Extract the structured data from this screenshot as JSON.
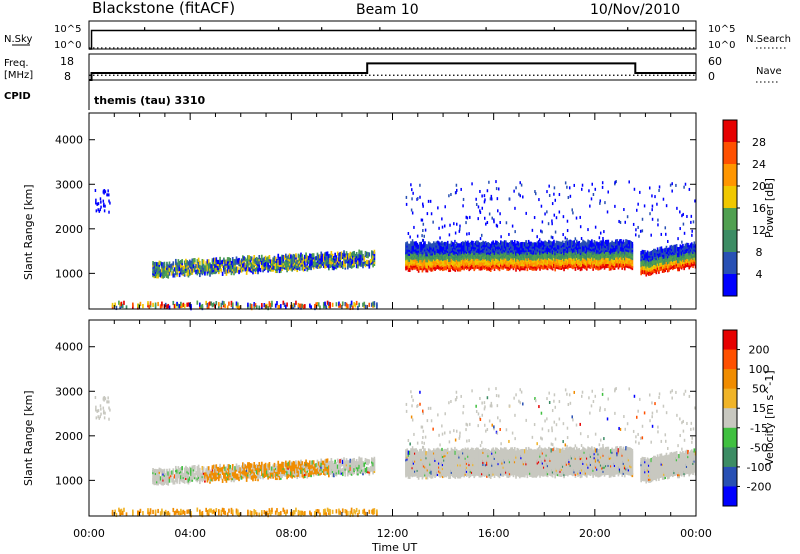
{
  "header": {
    "station": "Blackstone (fitACF)",
    "beam": "Beam 10",
    "date": "10/Nov/2010"
  },
  "labels": {
    "nsky": "N.Sky",
    "nsearch": "N.Search",
    "freq_line1": "Freq.",
    "freq_line2": "[MHz]",
    "nave": "Nave",
    "cpid": "CPID",
    "cpid_value": "themis (tau) 3310",
    "nsky_ticks": [
      "10^5",
      "10^0"
    ],
    "freq_ticks": [
      "18",
      "8"
    ],
    "nave_ticks": [
      "60",
      "0"
    ],
    "xlabel": "Time UT",
    "ylabel": "Slant Range [km]"
  },
  "colors": {
    "power_scale": [
      "#0000ff",
      "#2850b4",
      "#3c8c64",
      "#50a050",
      "#f0c800",
      "#ff9600",
      "#ff5000",
      "#e60000"
    ],
    "velocity_scale": [
      "#0000ff",
      "#2850b4",
      "#3c8c64",
      "#40c040",
      "#c8c8c0",
      "#f0b428",
      "#f08c00",
      "#ff5000",
      "#e60000"
    ],
    "velocity_gray": "#c8c8c0"
  },
  "chart_data": [
    {
      "type": "line",
      "name": "nsky-nsearch-panel",
      "ylim": [
        0,
        5
      ],
      "scale": "log",
      "x_range_hours": [
        0,
        24
      ],
      "series": [
        {
          "name": "N.Sky",
          "style": "solid",
          "x": [
            0,
            0.1,
            0.1,
            24
          ],
          "y": [
            0,
            0,
            3.3,
            3.3
          ]
        },
        {
          "name": "N.Search",
          "style": "dotted",
          "x": [
            0,
            24
          ],
          "y": [
            0.2,
            0.2
          ]
        }
      ]
    },
    {
      "type": "line",
      "name": "freq-nave-panel",
      "x_range_hours": [
        0,
        24
      ],
      "series": [
        {
          "name": "Freq",
          "style": "solid",
          "ylim": [
            8,
            18
          ],
          "x": [
            0,
            0.1,
            0.1,
            11,
            11,
            21.6,
            21.6,
            24
          ],
          "y": [
            8,
            8,
            10.7,
            10.7,
            14.4,
            14.4,
            10.7,
            10.7
          ]
        },
        {
          "name": "Nave",
          "style": "dotted",
          "ylim": [
            0,
            60
          ],
          "x": [
            0,
            24
          ],
          "y": [
            11,
            11
          ]
        }
      ]
    },
    {
      "type": "heatmap",
      "name": "power-panel",
      "title": "Power [dB]",
      "xlabel": "Time UT",
      "ylabel": "Slant Range [km]",
      "xlim": [
        0,
        24
      ],
      "ylim": [
        200,
        4600
      ],
      "x_ticks": [
        "00:00",
        "04:00",
        "08:00",
        "12:00",
        "16:00",
        "20:00",
        "00:00"
      ],
      "y_ticks": [
        1000,
        2000,
        3000,
        4000
      ],
      "colorbar_ticks": [
        4,
        8,
        12,
        16,
        20,
        24,
        28
      ],
      "colorbar_range": [
        0,
        32
      ],
      "regions": [
        {
          "t0": 2.5,
          "t1": 11.3,
          "r0_start": 950,
          "r0_end": 1200,
          "thick": 300,
          "level": "low"
        },
        {
          "t0": 12.5,
          "t1": 21.5,
          "r0_start": 1100,
          "r0_end": 1150,
          "thick": 600,
          "level": "high"
        },
        {
          "t0": 21.8,
          "t1": 24,
          "r0_start": 1000,
          "r0_end": 1200,
          "thick": 500,
          "level": "high"
        },
        {
          "t0": 0.9,
          "t1": 11.5,
          "r0_start": 260,
          "r0_end": 260,
          "thick": 90,
          "level": "ground"
        }
      ]
    },
    {
      "type": "heatmap",
      "name": "velocity-panel",
      "title": "Velocity [m s^-1]",
      "xlabel": "Time UT",
      "ylabel": "Slant Range [km]",
      "xlim": [
        0,
        24
      ],
      "ylim": [
        200,
        4600
      ],
      "x_ticks": [
        "00:00",
        "04:00",
        "08:00",
        "12:00",
        "16:00",
        "20:00",
        "00:00"
      ],
      "y_ticks": [
        1000,
        2000,
        3000,
        4000
      ],
      "colorbar_ticks": [
        "200",
        "100",
        "50",
        "15",
        "-15",
        "-50",
        "-100",
        "-200"
      ]
    }
  ]
}
